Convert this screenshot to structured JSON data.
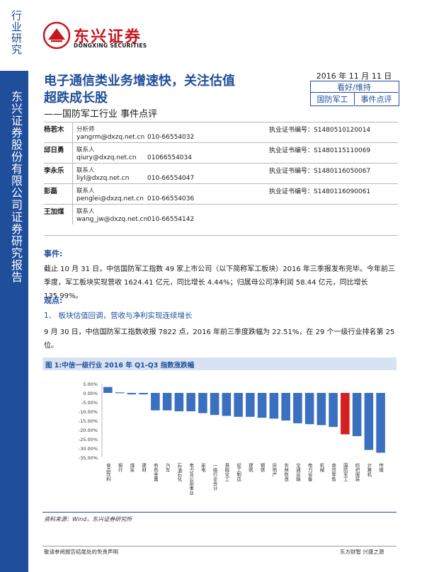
{
  "rail": {
    "top": "行业研究",
    "bottom": "东兴证券股份有限公司证券研究报告"
  },
  "logo": {
    "cn": "东兴证券",
    "en": "DONGXING SECURITIES"
  },
  "title": {
    "line1": "电子通信类业务增速快，关注估值",
    "line2": "超跌成长股",
    "subtitle": "——国防军工行业  事件点评"
  },
  "info": {
    "date": "2016 年 11 月 11 日",
    "rating": "看好/维持",
    "industry": "国防军工",
    "type": "事件点评"
  },
  "analysts": [
    {
      "name": "杨若木",
      "role": "分析师",
      "cert": "执业证书编号：S1480510120014",
      "email": "yangrm@dxzq.net.cn",
      "tel": "010-66554032"
    },
    {
      "name": "邱日勇",
      "role": "联系人",
      "cert": "执业证书编号：S1480115110069",
      "email": "qiury@dxzq.net.cn",
      "tel": "01066554034"
    },
    {
      "name": "李永乐",
      "role": "联系人",
      "cert": "执业证书编号：S1480116050067",
      "email": "liyl@dxzq.net.cn",
      "tel": "010-66554047"
    },
    {
      "name": "彭磊",
      "role": "联系人",
      "cert": "执业证书编号：S1480116090061",
      "email": "penglei@dxzq.net.cn",
      "tel": "010-66554036"
    },
    {
      "name": "王加煤",
      "role": "联系人",
      "cert": "",
      "email": "wang_jw@dxzq.net.cn",
      "tel": "010-66554142"
    }
  ],
  "event": {
    "heading": "事件:",
    "para": "截止 10 月 31 日，中信国防军工指数 49 家上市公司（以下简称军工板块）2016 年三季报发布完毕。今年前三季度，军工板块实现营收 1624.41 亿元，同比增长 4.44%；归属母公司净利润 58.44 亿元，同比增长 135.99%。"
  },
  "view": {
    "heading": "观点:",
    "sub1": "1、 板块估值回调，营收与净利实现连续增长",
    "para1": "9 月 30 日，中信国防军工指数收报 7822 点，2016 年前三季度跌幅为 22.51%，在 29 个一级行业排名第 25 位。"
  },
  "figure": {
    "title": "图 1:中信一级行业 2016 年 Q1-Q3 指数涨跌幅",
    "source": "资料来源：Wind，东兴证券研究所"
  },
  "chart_data": {
    "type": "bar",
    "categories": [
      "食品饮料",
      "银行",
      "煤炭",
      "建材",
      "有色金属",
      "汽车",
      "石油石化",
      "电力及公用事业",
      "家电",
      "一级行业合计",
      "基础化工",
      "轻工制造",
      "建筑",
      "钢铁",
      "房地产",
      "农林牧渔",
      "交通运输",
      "电力设备",
      "机械",
      "商贸零售",
      "国防军工",
      "纺织服装",
      "计算机",
      "传媒"
    ],
    "values": [
      3.2,
      0.3,
      -0.8,
      -0.8,
      -9.5,
      -9.5,
      -10.0,
      -10.0,
      -11.0,
      -12.0,
      -12.5,
      -13.0,
      -13.0,
      -13.5,
      -14.0,
      -15.0,
      -16.5,
      -17.0,
      -17.5,
      -18.5,
      -22.51,
      -23.5,
      -31.0,
      -32.5
    ],
    "highlight_category": "国防军工",
    "ylim": [
      -35,
      5
    ],
    "yticks": [
      "5.00%",
      "0.00%",
      "-5.00%",
      "-10.00%",
      "-15.00%",
      "-20.00%",
      "-25.00%",
      "-30.00%",
      "-35.00%"
    ],
    "colors": {
      "bar": "#3b6fbf",
      "highlight": "#d42020"
    }
  },
  "footer": {
    "left": "敬请参阅报告结尾处的免责声明",
    "right": "东方财智  兴盛之源"
  }
}
